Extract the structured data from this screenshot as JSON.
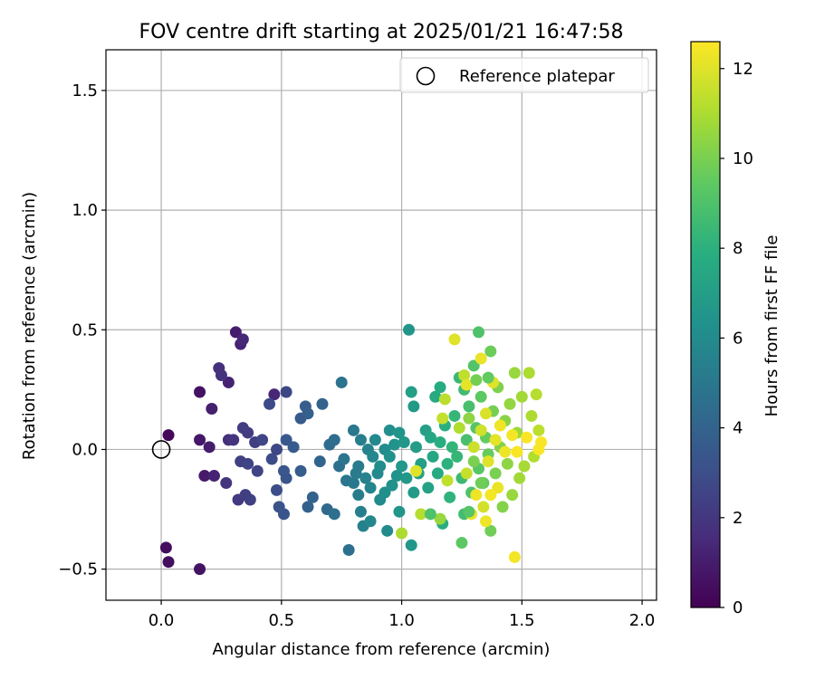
{
  "chart_data": {
    "type": "scatter",
    "title": "FOV centre drift starting at 2025/01/21 16:47:58",
    "xlabel": "Angular distance from reference (arcmin)",
    "ylabel": "Rotation from reference (arcmin)",
    "xlim": [
      -0.23,
      2.06
    ],
    "ylim": [
      -0.63,
      1.67
    ],
    "xticks": [
      0.0,
      0.5,
      1.0,
      1.5,
      2.0
    ],
    "xtick_labels": [
      "0.0",
      "0.5",
      "1.0",
      "1.5",
      "2.0"
    ],
    "yticks": [
      -0.5,
      0.0,
      0.5,
      1.0,
      1.5
    ],
    "ytick_labels": [
      "−0.5",
      "0.0",
      "0.5",
      "1.0",
      "1.5"
    ],
    "grid": true,
    "colormap": "viridis",
    "colorbar": {
      "label": "Hours from first FF file",
      "range": [
        0,
        12.6
      ],
      "ticks": [
        0,
        2,
        4,
        6,
        8,
        10,
        12
      ],
      "tick_labels": [
        "0",
        "2",
        "4",
        "6",
        "8",
        "10",
        "12"
      ]
    },
    "legend": {
      "placement": "top-right",
      "entries": [
        "Reference platepar"
      ]
    },
    "reference_point": {
      "x": 0.0,
      "y": 0.0
    },
    "points": [
      [
        0.03,
        0.06,
        0.3
      ],
      [
        0.02,
        -0.41,
        0.4
      ],
      [
        0.03,
        -0.47,
        0.5
      ],
      [
        0.16,
        -0.5,
        0.6
      ],
      [
        0.16,
        0.24,
        0.6
      ],
      [
        0.16,
        0.04,
        0.8
      ],
      [
        0.18,
        -0.11,
        0.9
      ],
      [
        0.2,
        0.01,
        1.0
      ],
      [
        0.21,
        0.17,
        1.1
      ],
      [
        0.22,
        -0.11,
        1.2
      ],
      [
        0.28,
        0.28,
        1.2
      ],
      [
        0.31,
        0.49,
        1.0
      ],
      [
        0.33,
        0.44,
        1.2
      ],
      [
        0.34,
        0.46,
        1.4
      ],
      [
        0.47,
        0.23,
        1.4
      ],
      [
        0.24,
        0.34,
        1.7
      ],
      [
        0.25,
        0.31,
        1.8
      ],
      [
        0.28,
        0.04,
        1.6
      ],
      [
        0.27,
        -0.14,
        1.9
      ],
      [
        0.3,
        0.04,
        1.9
      ],
      [
        0.32,
        -0.21,
        2.1
      ],
      [
        0.34,
        0.09,
        2.2
      ],
      [
        0.36,
        0.07,
        2.2
      ],
      [
        0.35,
        -0.19,
        2.3
      ],
      [
        0.33,
        -0.05,
        2.4
      ],
      [
        0.37,
        -0.21,
        2.4
      ],
      [
        0.36,
        -0.06,
        2.5
      ],
      [
        0.39,
        0.03,
        2.3
      ],
      [
        0.4,
        -0.09,
        2.5
      ],
      [
        0.42,
        0.04,
        2.6
      ],
      [
        0.45,
        0.19,
        2.8
      ],
      [
        0.46,
        -0.04,
        2.9
      ],
      [
        0.48,
        0.0,
        2.7
      ],
      [
        0.48,
        -0.17,
        3.0
      ],
      [
        0.52,
        0.24,
        2.7
      ],
      [
        0.49,
        -0.24,
        3.2
      ],
      [
        0.51,
        -0.27,
        3.2
      ],
      [
        0.51,
        -0.09,
        3.4
      ],
      [
        0.52,
        0.04,
        3.5
      ],
      [
        0.52,
        -0.12,
        3.3
      ],
      [
        0.55,
        0.01,
        3.6
      ],
      [
        0.58,
        0.13,
        3.6
      ],
      [
        0.58,
        -0.09,
        3.7
      ],
      [
        0.6,
        0.18,
        3.7
      ],
      [
        0.61,
        0.15,
        3.8
      ],
      [
        0.61,
        -0.24,
        3.9
      ],
      [
        0.63,
        -0.2,
        4.0
      ],
      [
        0.66,
        -0.05,
        4.1
      ],
      [
        0.67,
        0.19,
        4.0
      ],
      [
        0.69,
        -0.25,
        4.3
      ],
      [
        0.7,
        0.02,
        4.4
      ],
      [
        0.72,
        0.04,
        4.5
      ],
      [
        0.72,
        -0.27,
        4.6
      ],
      [
        0.74,
        -0.07,
        4.6
      ],
      [
        0.75,
        0.28,
        4.8
      ],
      [
        0.78,
        -0.42,
        4.6
      ],
      [
        0.77,
        -0.13,
        4.9
      ],
      [
        0.76,
        -0.04,
        4.9
      ],
      [
        0.8,
        0.08,
        5.0
      ],
      [
        0.8,
        -0.14,
        5.1
      ],
      [
        0.81,
        -0.1,
        5.2
      ],
      [
        0.82,
        -0.07,
        5.2
      ],
      [
        0.82,
        -0.19,
        5.3
      ],
      [
        0.83,
        0.04,
        5.4
      ],
      [
        0.83,
        -0.26,
        5.4
      ],
      [
        0.84,
        -0.32,
        5.5
      ],
      [
        0.85,
        -0.12,
        5.6
      ],
      [
        0.86,
        0.0,
        5.6
      ],
      [
        0.87,
        -0.16,
        5.7
      ],
      [
        0.87,
        -0.3,
        5.8
      ],
      [
        0.88,
        -0.03,
        5.8
      ],
      [
        0.89,
        0.04,
        5.9
      ],
      [
        0.9,
        -0.1,
        5.9
      ],
      [
        0.91,
        -0.21,
        6.0
      ],
      [
        0.91,
        -0.07,
        6.1
      ],
      [
        0.93,
        0.0,
        6.1
      ],
      [
        0.93,
        -0.18,
        6.2
      ],
      [
        0.94,
        -0.34,
        6.0
      ],
      [
        0.95,
        0.08,
        6.2
      ],
      [
        0.95,
        -0.03,
        6.3
      ],
      [
        0.96,
        -0.15,
        6.3
      ],
      [
        0.97,
        0.02,
        6.4
      ],
      [
        0.98,
        -0.11,
        6.4
      ],
      [
        0.99,
        -0.26,
        6.5
      ],
      [
        0.99,
        0.07,
        6.5
      ],
      [
        1.0,
        -0.07,
        6.6
      ],
      [
        1.01,
        0.03,
        6.6
      ],
      [
        1.02,
        -0.12,
        6.7
      ],
      [
        1.03,
        0.5,
        6.5
      ],
      [
        1.04,
        -0.4,
        6.6
      ],
      [
        1.05,
        0.18,
        6.8
      ],
      [
        1.05,
        -0.18,
        6.8
      ],
      [
        1.06,
        0.01,
        6.9
      ],
      [
        1.08,
        -0.06,
        7.0
      ],
      [
        1.04,
        0.24,
        7.0
      ],
      [
        1.07,
        -0.1,
        7.1
      ],
      [
        1.1,
        0.08,
        7.1
      ],
      [
        1.11,
        -0.16,
        7.2
      ],
      [
        1.12,
        0.05,
        7.4
      ],
      [
        1.13,
        -0.03,
        7.5
      ],
      [
        1.14,
        0.22,
        7.6
      ],
      [
        1.15,
        -0.1,
        7.6
      ],
      [
        1.16,
        0.26,
        7.7
      ],
      [
        1.16,
        0.03,
        7.8
      ],
      [
        1.17,
        -0.31,
        7.8
      ],
      [
        1.18,
        0.1,
        7.9
      ],
      [
        1.19,
        -0.06,
        8.0
      ],
      [
        1.2,
        -0.2,
        8.1
      ],
      [
        1.21,
        0.01,
        8.2
      ],
      [
        1.22,
        0.14,
        8.3
      ],
      [
        1.23,
        -0.03,
        8.3
      ],
      [
        1.24,
        0.3,
        8.4
      ],
      [
        1.25,
        -0.12,
        8.5
      ],
      [
        1.26,
        0.25,
        8.6
      ],
      [
        1.26,
        -0.27,
        8.7
      ],
      [
        1.27,
        0.04,
        8.8
      ],
      [
        1.28,
        0.18,
        8.8
      ],
      [
        1.29,
        -0.18,
        9.0
      ],
      [
        1.3,
        0.35,
        9.1
      ],
      [
        1.31,
        0.09,
        9.2
      ],
      [
        1.32,
        0.49,
        9.0
      ],
      [
        1.32,
        -0.08,
        9.3
      ],
      [
        1.33,
        0.22,
        9.4
      ],
      [
        1.34,
        -0.14,
        9.5
      ],
      [
        1.35,
        0.05,
        9.6
      ],
      [
        1.36,
        -0.02,
        9.6
      ],
      [
        1.37,
        0.41,
        9.7
      ],
      [
        1.37,
        -0.34,
        9.8
      ],
      [
        1.38,
        0.16,
        9.9
      ],
      [
        1.39,
        -0.1,
        10.0
      ],
      [
        1.4,
        0.26,
        10.1
      ],
      [
        1.41,
        0.01,
        10.2
      ],
      [
        1.42,
        -0.24,
        10.2
      ],
      [
        1.43,
        0.12,
        10.3
      ],
      [
        1.44,
        -0.06,
        10.4
      ],
      [
        1.45,
        0.19,
        10.5
      ],
      [
        1.46,
        -0.19,
        10.6
      ],
      [
        1.47,
        0.32,
        10.6
      ],
      [
        1.48,
        0.07,
        10.7
      ],
      [
        1.49,
        -0.12,
        10.8
      ],
      [
        1.5,
        0.22,
        10.8
      ],
      [
        1.51,
        -0.07,
        10.9
      ],
      [
        1.53,
        0.32,
        11.0
      ],
      [
        1.54,
        0.14,
        11.0
      ],
      [
        1.55,
        -0.03,
        11.1
      ],
      [
        1.56,
        0.23,
        11.2
      ],
      [
        1.57,
        0.08,
        11.3
      ],
      [
        1.0,
        -0.35,
        11.0
      ],
      [
        1.08,
        -0.27,
        11.2
      ],
      [
        1.18,
        0.21,
        11.3
      ],
      [
        1.26,
        0.31,
        11.4
      ],
      [
        1.27,
        -0.1,
        11.5
      ],
      [
        1.3,
        0.01,
        11.6
      ],
      [
        1.33,
        0.08,
        11.7
      ],
      [
        1.34,
        -0.24,
        11.8
      ],
      [
        1.35,
        0.15,
        11.9
      ],
      [
        1.36,
        -0.05,
        12.0
      ],
      [
        1.38,
        0.28,
        12.0
      ],
      [
        1.39,
        0.04,
        12.1
      ],
      [
        1.4,
        -0.16,
        12.2
      ],
      [
        1.41,
        0.1,
        12.3
      ],
      [
        1.43,
        -0.01,
        12.3
      ],
      [
        1.46,
        0.06,
        12.4
      ],
      [
        1.47,
        -0.45,
        12.4
      ],
      [
        1.48,
        -0.01,
        12.5
      ],
      [
        1.52,
        0.05,
        12.5
      ],
      [
        1.57,
        0.0,
        12.5
      ],
      [
        1.58,
        0.03,
        12.5
      ],
      [
        1.22,
        0.46,
        12.0
      ],
      [
        1.27,
        0.27,
        12.1
      ],
      [
        1.29,
        -0.27,
        12.2
      ],
      [
        1.31,
        -0.19,
        12.3
      ],
      [
        1.33,
        0.38,
        12.2
      ],
      [
        1.35,
        -0.3,
        12.3
      ],
      [
        1.37,
        -0.19,
        12.4
      ],
      [
        1.06,
        -0.09,
        12.0
      ],
      [
        1.17,
        0.13,
        11.5
      ],
      [
        1.19,
        -0.13,
        11.4
      ],
      [
        1.24,
        0.09,
        11.1
      ],
      [
        1.28,
        0.13,
        10.4
      ],
      [
        1.3,
        -0.05,
        10.0
      ],
      [
        1.31,
        0.29,
        9.9
      ],
      [
        1.33,
        -0.14,
        9.8
      ],
      [
        1.16,
        -0.29,
        10.6
      ],
      [
        1.25,
        -0.39,
        9.4
      ],
      [
        1.28,
        -0.26,
        9.2
      ],
      [
        1.12,
        -0.27,
        9.0
      ],
      [
        1.36,
        0.3,
        9.5
      ]
    ]
  }
}
